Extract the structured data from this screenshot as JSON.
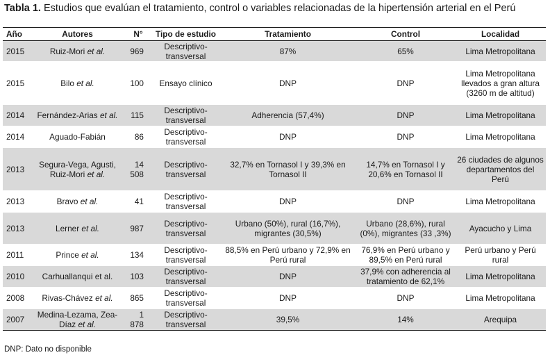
{
  "caption": {
    "label": "Tabla 1.",
    "text": " Estudios que evalúan el tratamiento, control o variables relacionadas de la hipertensión arterial en el Perú"
  },
  "table": {
    "headers": [
      "Año",
      "Autores",
      "N°",
      "Tipo de estudio",
      "Tratamiento",
      "Control",
      "Localidad"
    ],
    "rows": [
      {
        "year": "2015",
        "author": "Ruiz-Mori",
        "etal": "et al.",
        "n": "969",
        "tipo": "Descriptivo-transversal",
        "tratamiento": "87%",
        "control": "65%",
        "localidad": "Lima Metropolitana"
      },
      {
        "year": "2015",
        "author": "Bilo",
        "etal": "et al.",
        "n": "100",
        "tipo": "Ensayo clínico",
        "tratamiento": "DNP",
        "control": "DNP",
        "localidad": "Lima Metropolitana llevados a gran altura (3260 m de altitud)"
      },
      {
        "year": "2014",
        "author": "Fernández-Arias",
        "etal": "et al.",
        "n": "115",
        "tipo": "Descriptivo-transversal",
        "tratamiento": "Adherencia (57,4%)",
        "control": "DNP",
        "localidad": "Lima Metropolitana"
      },
      {
        "year": "2014",
        "author": "Aguado-Fabián",
        "etal": "",
        "n": "86",
        "tipo": "Descriptivo-transversal",
        "tratamiento": "DNP",
        "control": "DNP",
        "localidad": "Lima Metropolitana"
      },
      {
        "year": "2013",
        "author": "Segura-Vega, Agusti, Ruiz-Mori",
        "etal": "et al.",
        "n": "14 508",
        "tipo": "Descriptivo-transversal",
        "tratamiento": "32,7% en Tornasol I y 39,3% en Tornasol II",
        "control": "14,7% en Tornasol I y 20,6% en Tornasol II",
        "localidad": "26 ciudades de algunos departamentos del Perú"
      },
      {
        "year": "2013",
        "author": "Bravo",
        "etal": "et al.",
        "n": "41",
        "tipo": "Descriptivo-transversal",
        "tratamiento": "DNP",
        "control": "DNP",
        "localidad": "Lima Metropolitana"
      },
      {
        "year": "2013",
        "author": "Lerner",
        "etal": "et al.",
        "n": "987",
        "tipo": "Descriptivo-transversal",
        "tratamiento": "Urbano (50%), rural (16,7%), migrantes (30,5%)",
        "control": "Urbano (28,6%), rural (0%), migrantes (33 ,3%)",
        "localidad": "Ayacucho y Lima"
      },
      {
        "year": "2011",
        "author": "Prince",
        "etal": "et al.",
        "n": "134",
        "tipo": "Descriptivo-transversal",
        "tratamiento": "88,5% en Perú urbano y 72,9% en Perú rural",
        "control": "76,9% en Perú urbano y 89,5% en Perú rural",
        "localidad": "Perú urbano y Perú rural"
      },
      {
        "year": "2010",
        "author": "Carhuallanqui et al.",
        "etal": "",
        "n": "103",
        "tipo": "Descriptivo-transversal",
        "tratamiento": "DNP",
        "control": "37,9% con adherencia al tratamiento de 62,1%",
        "localidad": "Lima Metropolitana"
      },
      {
        "year": "2008",
        "author": "Rivas-Chávez",
        "etal": "et al.",
        "n": "865",
        "tipo": "Descriptivo-transversal",
        "tratamiento": "DNP",
        "control": "DNP",
        "localidad": "Lima Metropolitana"
      },
      {
        "year": "2007",
        "author": "Medina-Lezama, Zea-Díaz",
        "etal": "et al.",
        "n": "1 878",
        "tipo": "Descriptivo-transversal",
        "tratamiento": "39,5%",
        "control": "14%",
        "localidad": "Arequipa"
      }
    ]
  },
  "footnote": "DNP: Dato no disponible"
}
